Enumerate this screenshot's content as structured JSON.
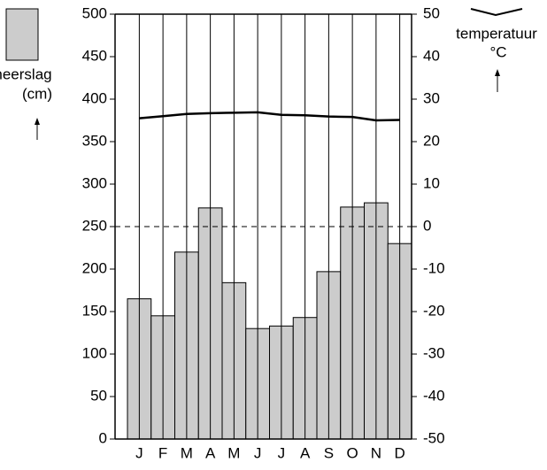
{
  "chart_data": {
    "type": "bar",
    "categories": [
      "J",
      "F",
      "M",
      "A",
      "M",
      "J",
      "J",
      "A",
      "S",
      "O",
      "N",
      "D"
    ],
    "series": [
      {
        "name": "neerslag",
        "color": "#cccccc",
        "values": [
          165,
          145,
          220,
          272,
          184,
          130,
          133,
          143,
          197,
          273,
          278,
          230
        ]
      },
      {
        "name": "temperatuur",
        "color": "#000000",
        "axis": "y2",
        "type": "line",
        "values": [
          25.5,
          26,
          26.5,
          26.7,
          26.8,
          26.9,
          26.3,
          26.2,
          25.9,
          25.8,
          25,
          25.1
        ]
      }
    ],
    "ylabel": "neerslag",
    "yunit": "(cm)",
    "y2unit": "°C",
    "ylim": [
      0,
      500
    ],
    "yticks": [
      0,
      50,
      100,
      150,
      200,
      250,
      300,
      350,
      400,
      450,
      500
    ],
    "y2lim": [
      -50,
      50
    ],
    "y2ticks": [
      -50,
      -40,
      -30,
      -20,
      -10,
      0,
      10,
      20,
      30,
      40,
      50
    ],
    "grid": "vertical"
  }
}
